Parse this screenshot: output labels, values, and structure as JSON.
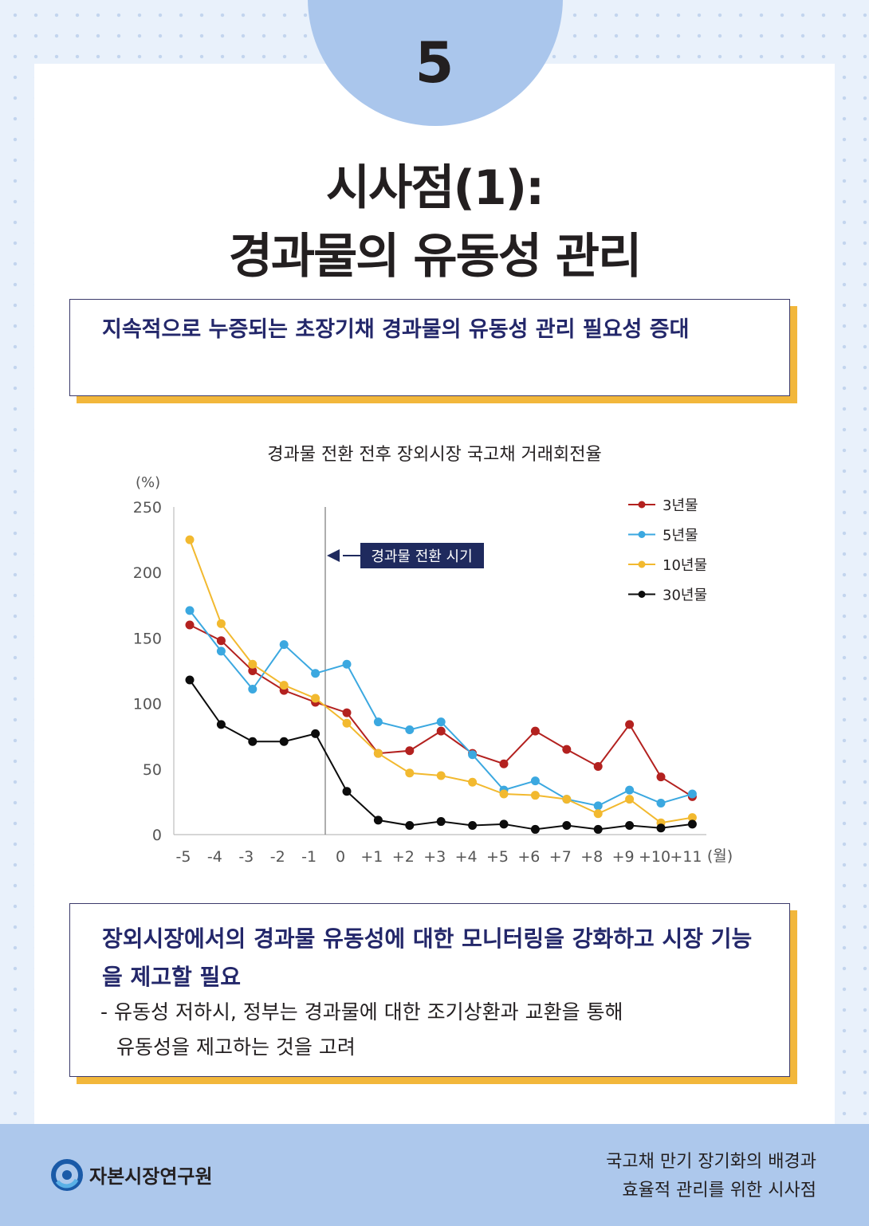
{
  "section_number": "5",
  "title_line1": "시사점(1):",
  "title_line2": "경과물의 유동성 관리",
  "box1_text": "지속적으로 누증되는 초장기채 경과물의 유동성 관리 필요성 증대",
  "box2": {
    "heading": "장외시장에서의 경과물 유동성에 대한 모니터링을 강화하고 시장 기능을 제고할 필요",
    "bullet_line1": "- 유동성 저하시, 정부는 경과물에 대한 조기상환과 교환을 통해",
    "bullet_line2": "유동성을 제고하는 것을 고려"
  },
  "footer": {
    "org_name": "자본시장연구원",
    "right_line1": "국고채 만기 장기화의 배경과",
    "right_line2": "효율적 관리를 위한 시사점"
  },
  "colors": {
    "series_3y": "#b3211f",
    "series_5y": "#3ba8e0",
    "series_10y": "#f2b92f",
    "series_30y": "#0c0c0c",
    "annotation_bg": "#1f2a5e"
  },
  "chart_data": {
    "type": "line",
    "title": "경과물 전환 전후 장외시장 국고채 거래회전율",
    "ylabel": "(%)",
    "xlabel": "(월)",
    "ylim": [
      0,
      250
    ],
    "yticks": [
      0,
      50,
      100,
      150,
      200,
      250
    ],
    "grid": false,
    "legend_position": "top-right",
    "categories": [
      "-5",
      "-4",
      "-3",
      "-2",
      "-1",
      "0",
      "+1",
      "+2",
      "+3",
      "+4",
      "+5",
      "+6",
      "+7",
      "+8",
      "+9",
      "+10",
      "+11"
    ],
    "series": [
      {
        "name": "3년물",
        "color_key": "series_3y",
        "values": [
          160,
          148,
          125,
          110,
          101,
          93,
          62,
          64,
          79,
          62,
          54,
          79,
          65,
          52,
          84,
          44,
          29
        ]
      },
      {
        "name": "5년물",
        "color_key": "series_5y",
        "values": [
          171,
          140,
          111,
          145,
          123,
          130,
          86,
          80,
          86,
          61,
          34,
          41,
          27,
          22,
          34,
          24,
          31
        ]
      },
      {
        "name": "10년물",
        "color_key": "series_10y",
        "values": [
          225,
          161,
          130,
          114,
          104,
          85,
          62,
          47,
          45,
          40,
          31,
          30,
          27,
          16,
          27,
          9,
          13
        ]
      },
      {
        "name": "30년물",
        "color_key": "series_30y",
        "values": [
          118,
          84,
          71,
          71,
          77,
          33,
          11,
          7,
          10,
          7,
          8,
          4,
          7,
          4,
          7,
          5,
          8
        ]
      }
    ],
    "annotation": {
      "label": "경과물 전환 시기",
      "at_category": "-0.5"
    }
  }
}
